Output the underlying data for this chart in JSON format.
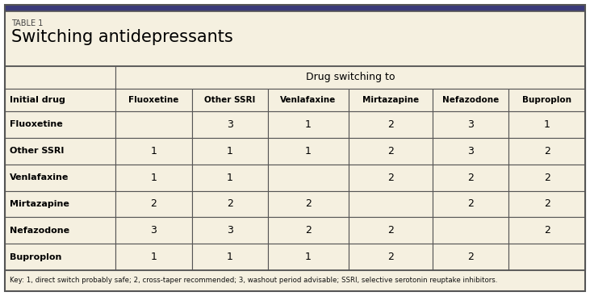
{
  "table_label": "TABLE 1",
  "title": "Switching antidepressants",
  "col_header_group": "Drug switching to",
  "row_header_label": "Initial drug",
  "columns": [
    "Fluoxetine",
    "Other SSRI",
    "Venlafaxine",
    "Mirtazapine",
    "Nefazodone",
    "Buproplon"
  ],
  "rows": [
    "Fluoxetine",
    "Other SSRI",
    "Venlafaxine",
    "Mirtazapine",
    "Nefazodone",
    "Buproplon"
  ],
  "data": [
    [
      "",
      "3",
      "1",
      "2",
      "3",
      "1"
    ],
    [
      "1",
      "1",
      "1",
      "2",
      "3",
      "2"
    ],
    [
      "1",
      "1",
      "",
      "2",
      "2",
      "2"
    ],
    [
      "2",
      "2",
      "2",
      "",
      "2",
      "2"
    ],
    [
      "3",
      "3",
      "2",
      "2",
      "",
      "2"
    ],
    [
      "1",
      "1",
      "1",
      "2",
      "2",
      ""
    ]
  ],
  "key_text": "Key: 1, direct switch probably safe; 2, cross-taper recommended; 3, washout period advisable; SSRI, selective serotonin reuptake inhibitors.",
  "bg_color": "#f5f0e0",
  "border_color": "#555555",
  "top_bar_color": "#3a3a7a",
  "title_color": "#000000"
}
